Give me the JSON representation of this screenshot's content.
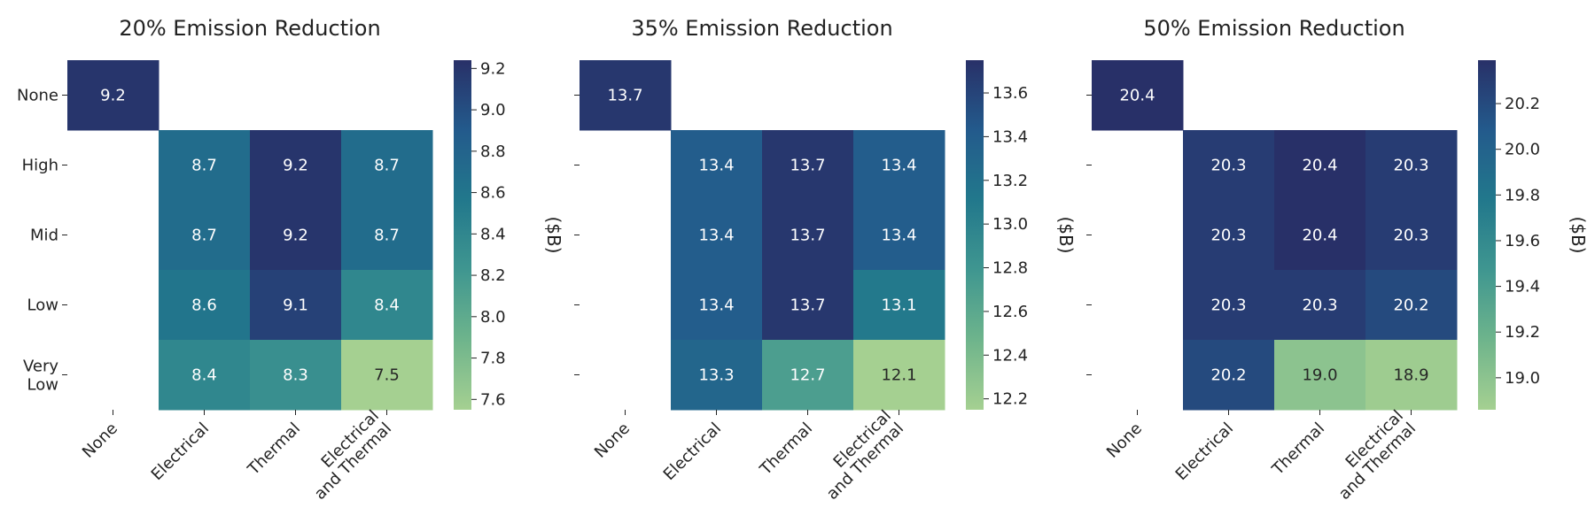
{
  "chart_data": [
    {
      "type": "heatmap",
      "title": "20% Emission Reduction",
      "row_labels": [
        "None",
        "High",
        "Mid",
        "Low",
        "Very\nLow"
      ],
      "col_labels": [
        "None",
        "Electrical",
        "Thermal",
        "Electrical\nand Thermal"
      ],
      "values": [
        [
          9.2,
          null,
          null,
          null
        ],
        [
          null,
          8.7,
          9.2,
          8.7
        ],
        [
          null,
          8.7,
          9.2,
          8.7
        ],
        [
          null,
          8.6,
          9.1,
          8.4
        ],
        [
          null,
          8.4,
          8.3,
          7.5
        ]
      ],
      "colorbar_label": "($B)",
      "colorbar_range": [
        7.55,
        9.24
      ],
      "colorbar_ticks": [
        "7.6",
        "7.8",
        "8.0",
        "8.2",
        "8.4",
        "8.6",
        "8.8",
        "9.0",
        "9.2"
      ],
      "colormap": "crest"
    },
    {
      "type": "heatmap",
      "title": "35% Emission Reduction",
      "row_labels": [
        "None",
        "High",
        "Mid",
        "Low",
        "Very\nLow"
      ],
      "col_labels": [
        "None",
        "Electrical",
        "Thermal",
        "Electrical\nand Thermal"
      ],
      "values": [
        [
          13.7,
          null,
          null,
          null
        ],
        [
          null,
          13.4,
          13.7,
          13.4
        ],
        [
          null,
          13.4,
          13.7,
          13.4
        ],
        [
          null,
          13.4,
          13.7,
          13.1
        ],
        [
          null,
          13.3,
          12.7,
          12.1
        ]
      ],
      "colorbar_label": "($B)",
      "colorbar_range": [
        12.15,
        13.75
      ],
      "colorbar_ticks": [
        "12.2",
        "12.4",
        "12.6",
        "12.8",
        "13.0",
        "13.2",
        "13.4",
        "13.6"
      ],
      "colormap": "crest"
    },
    {
      "type": "heatmap",
      "title": "50% Emission Reduction",
      "row_labels": [
        "None",
        "High",
        "Mid",
        "Low",
        "Very\nLow"
      ],
      "col_labels": [
        "None",
        "Electrical",
        "Thermal",
        "Electrical\nand Thermal"
      ],
      "values": [
        [
          20.4,
          null,
          null,
          null
        ],
        [
          null,
          20.3,
          20.4,
          20.3
        ],
        [
          null,
          20.3,
          20.4,
          20.3
        ],
        [
          null,
          20.3,
          20.3,
          20.2
        ],
        [
          null,
          20.2,
          19.0,
          18.9
        ]
      ],
      "colorbar_label": "($B)",
      "colorbar_range": [
        18.86,
        20.39
      ],
      "colorbar_ticks": [
        "19.0",
        "19.2",
        "19.4",
        "19.6",
        "19.8",
        "20.0",
        "20.2"
      ],
      "colormap": "crest"
    }
  ]
}
